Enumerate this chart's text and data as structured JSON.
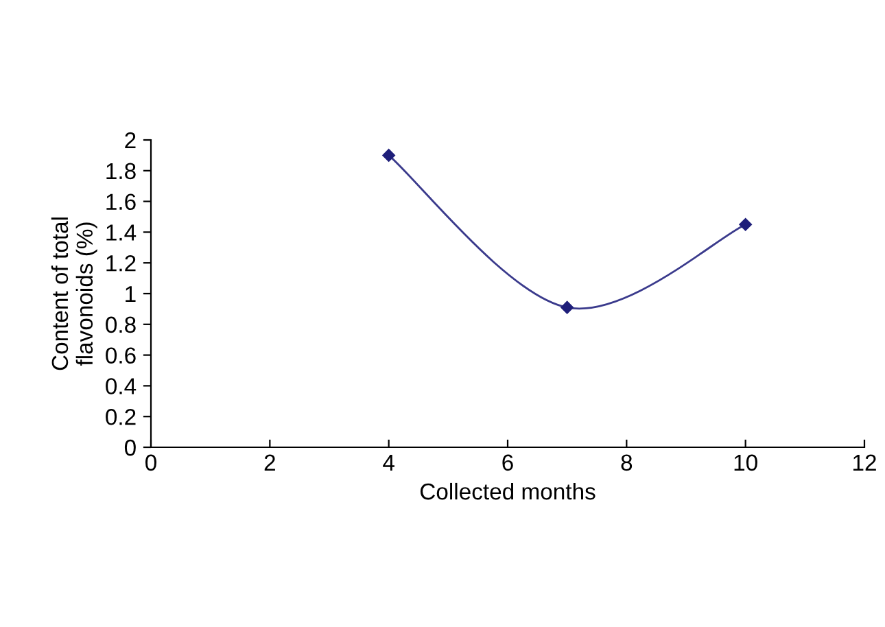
{
  "chart_data": {
    "type": "line",
    "xlabel": "Collected months",
    "ylabel": "Content of total\nflavonoids (%)",
    "x": [
      4,
      7,
      10
    ],
    "series": [
      {
        "color": "#3a3a8c",
        "values": [
          1.9,
          0.91,
          1.45
        ]
      }
    ],
    "xlim": [
      0,
      12
    ],
    "xticks": [
      0,
      2,
      4,
      6,
      8,
      10,
      12
    ],
    "ylim": [
      0,
      2
    ],
    "yticks": [
      0,
      0.2,
      0.4,
      0.6,
      0.8,
      1,
      1.2,
      1.4,
      1.6,
      1.8,
      2
    ],
    "marker": "diamond",
    "line_style": "solid",
    "grid": false,
    "legend": false
  }
}
